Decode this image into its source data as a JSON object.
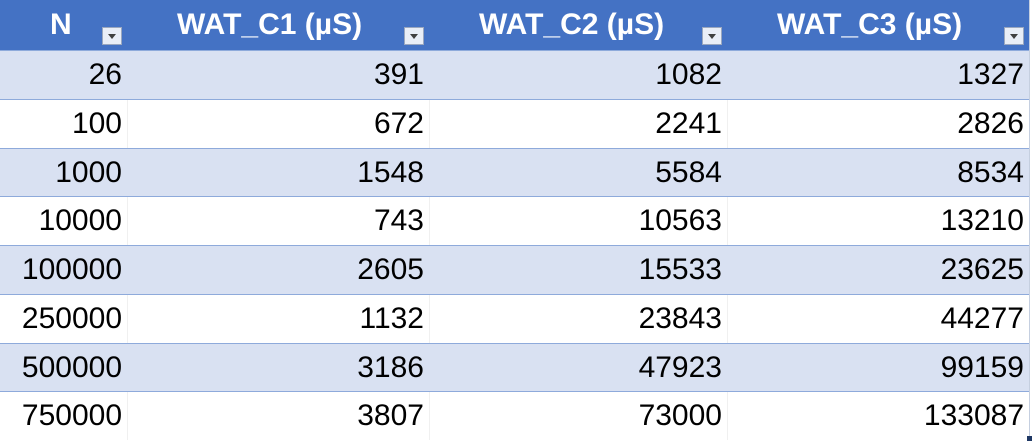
{
  "table": {
    "columns": [
      {
        "label": "N",
        "filter_icon": "dropdown-arrow-icon"
      },
      {
        "label": "WAT_C1 (µS)",
        "filter_icon": "dropdown-arrow-icon"
      },
      {
        "label": "WAT_C2 (µS)",
        "filter_icon": "dropdown-arrow-icon"
      },
      {
        "label": "WAT_C3 (µS)",
        "filter_icon": "dropdown-arrow-icon"
      }
    ],
    "rows": [
      [
        "26",
        "391",
        "1082",
        "1327"
      ],
      [
        "100",
        "672",
        "2241",
        "2826"
      ],
      [
        "1000",
        "1548",
        "5584",
        "8534"
      ],
      [
        "10000",
        "743",
        "10563",
        "13210"
      ],
      [
        "100000",
        "2605",
        "15533",
        "23625"
      ],
      [
        "250000",
        "1132",
        "23843",
        "44277"
      ],
      [
        "500000",
        "3186",
        "47923",
        "99159"
      ],
      [
        "750000",
        "3807",
        "73000",
        "133087"
      ]
    ],
    "colors": {
      "header_bg": "#4472c4",
      "band_bg": "#d9e1f2",
      "plain_bg": "#ffffff",
      "row_border": "#8eaadb"
    }
  }
}
